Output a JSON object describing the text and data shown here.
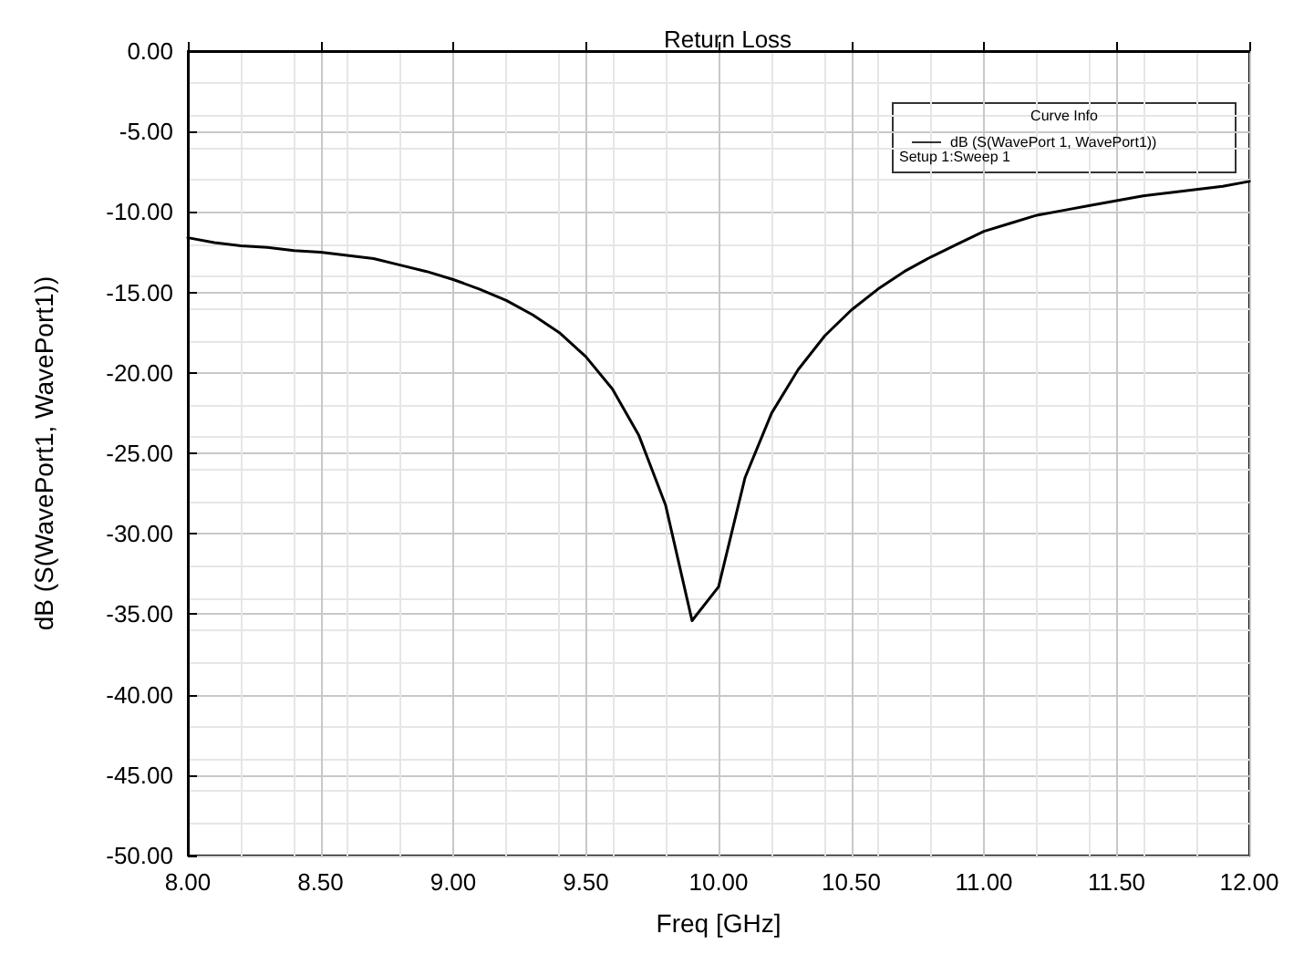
{
  "chart_data": {
    "type": "line",
    "title": "Return Loss",
    "xlabel": "Freq [GHz]",
    "ylabel": "dB (S(WavePort1, WavePort1))",
    "legend_title": "Curve Info",
    "annotations": [
      "Setup 1:Sweep 1"
    ],
    "x": [
      8.0,
      8.1,
      8.2,
      8.3,
      8.4,
      8.5,
      8.6,
      8.7,
      8.8,
      8.9,
      9.0,
      9.1,
      9.2,
      9.3,
      9.4,
      9.5,
      9.6,
      9.7,
      9.8,
      9.9,
      10.0,
      10.1,
      10.2,
      10.3,
      10.4,
      10.5,
      10.6,
      10.7,
      10.8,
      10.9,
      11.0,
      11.1,
      11.2,
      11.3,
      11.4,
      11.5,
      11.6,
      11.7,
      11.8,
      11.9,
      12.0
    ],
    "series": [
      {
        "name": "dB (S(WavePort 1, WavePort1))",
        "color": "#000000",
        "values": [
          -11.6,
          -11.9,
          -12.1,
          -12.2,
          -12.4,
          -12.5,
          -12.7,
          -12.9,
          -13.3,
          -13.7,
          -14.2,
          -14.8,
          -15.5,
          -16.4,
          -17.5,
          -19.0,
          -21.0,
          -23.9,
          -28.2,
          -35.4,
          -33.3,
          -26.5,
          -22.5,
          -19.8,
          -17.7,
          -16.1,
          -14.8,
          -13.7,
          -12.8,
          -12.0,
          -11.2,
          -10.7,
          -10.2,
          -9.9,
          -9.6,
          -9.3,
          -9.0,
          -8.8,
          -8.6,
          -8.4,
          -8.1
        ]
      }
    ],
    "xlim": [
      8.0,
      12.0
    ],
    "xticks": [
      {
        "value": 8.0,
        "label": "8.00"
      },
      {
        "value": 8.5,
        "label": "8.50"
      },
      {
        "value": 9.0,
        "label": "9.00"
      },
      {
        "value": 9.5,
        "label": "9.50"
      },
      {
        "value": 10.0,
        "label": "10.00"
      },
      {
        "value": 10.5,
        "label": "10.50"
      },
      {
        "value": 11.0,
        "label": "11.00"
      },
      {
        "value": 11.5,
        "label": "11.50"
      },
      {
        "value": 12.0,
        "label": "12.00"
      }
    ],
    "ylim": [
      -50,
      0
    ],
    "yticks": [
      {
        "value": -50,
        "label": "-50.00"
      },
      {
        "value": -45,
        "label": "-45.00"
      },
      {
        "value": -40,
        "label": "-40.00"
      },
      {
        "value": -35,
        "label": "-35.00"
      },
      {
        "value": -30,
        "label": "-30.00"
      },
      {
        "value": -25,
        "label": "-25.00"
      },
      {
        "value": -20,
        "label": "-20.00"
      },
      {
        "value": -15,
        "label": "-15.00"
      },
      {
        "value": -10,
        "label": "-10.00"
      },
      {
        "value": -5,
        "label": "-5.00"
      },
      {
        "value": 0,
        "label": "0.00"
      }
    ],
    "grid": true,
    "legend": "top right",
    "marker": "none",
    "line_style": "solid"
  }
}
